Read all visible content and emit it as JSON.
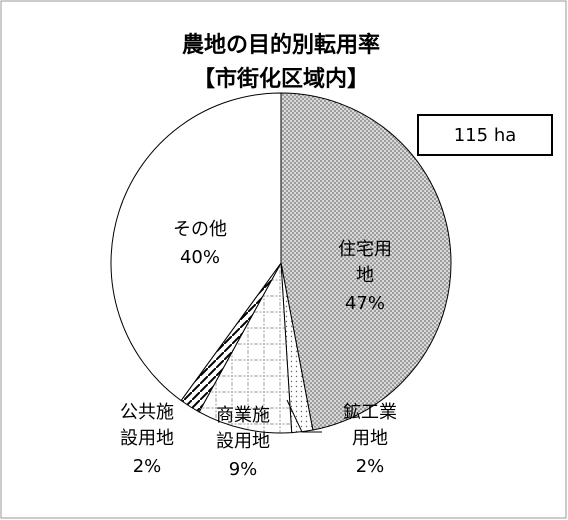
{
  "chart_data": {
    "type": "pie",
    "title": "農地の目的別転用率",
    "subtitle": "【市街化区域内】",
    "annotation": "115 ha",
    "categories": [
      "住宅用地",
      "鉱工業用地",
      "商業施設用地",
      "公共施設用地",
      "その他"
    ],
    "values": [
      47,
      2,
      9,
      2,
      40
    ],
    "value_labels": [
      "47%",
      "2%",
      "9%",
      "2%",
      "40%"
    ]
  }
}
